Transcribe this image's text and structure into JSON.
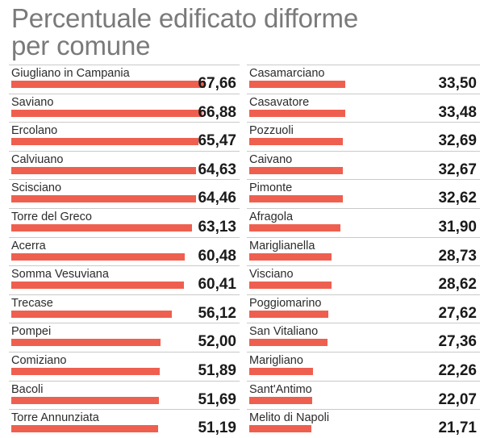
{
  "title": [
    "Percentuale edificato difforme",
    "per comune"
  ],
  "colors": {
    "bar": "#ef5f4f",
    "title": "#7a7a7a",
    "text": "#1a1a1a"
  },
  "chart_data": {
    "type": "bar",
    "orientation": "horizontal",
    "xlim": [
      0,
      100
    ],
    "columns": [
      {
        "categories": [
          "Giugliano in Campania",
          "Saviano",
          "Ercolano",
          "Calviuano",
          "Scisciano",
          "Torre del Greco",
          "Acerra",
          "Somma Vesuviana",
          "Trecase",
          "Pompei",
          "Comiziano",
          "Bacoli",
          "Torre Annunziata"
        ],
        "values": [
          67.66,
          66.88,
          65.47,
          64.63,
          64.46,
          63.13,
          60.48,
          60.41,
          56.12,
          52.0,
          51.89,
          51.69,
          51.19
        ],
        "labels": [
          "67,66",
          "66,88",
          "65,47",
          "64,63",
          "64,46",
          "63,13",
          "60,48",
          "60,41",
          "56,12",
          "52,00",
          "51,89",
          "51,69",
          "51,19"
        ]
      },
      {
        "categories": [
          "Casamarciano",
          "Casavatore",
          "Pozzuoli",
          "Caivano",
          "Pimonte",
          "Afragola",
          "Mariglianella",
          "Visciano",
          "Poggiomarino",
          "San Vitaliano",
          "Marigliano",
          "Sant'Antimo",
          "Melito di Napoli"
        ],
        "values": [
          33.5,
          33.48,
          32.69,
          32.67,
          32.62,
          31.9,
          28.73,
          28.62,
          27.62,
          27.36,
          22.26,
          22.07,
          21.71
        ],
        "labels": [
          "33,50",
          "33,48",
          "32,69",
          "32,67",
          "32,62",
          "31,90",
          "28,73",
          "28,62",
          "27,62",
          "27,36",
          "22,26",
          "22,07",
          "21,71"
        ]
      }
    ]
  }
}
